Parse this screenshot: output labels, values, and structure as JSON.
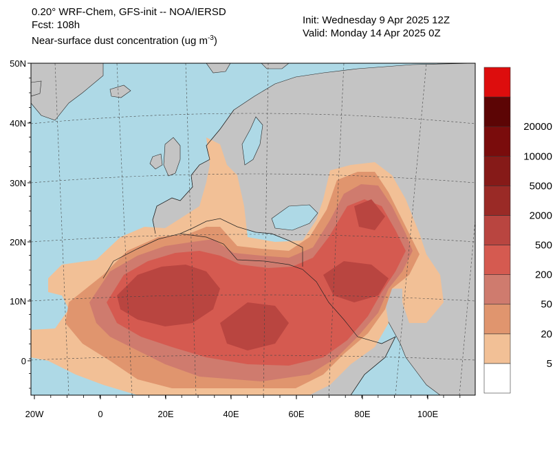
{
  "header": {
    "model_line": "0.20° WRF-Chem, GFS-init -- NOA/IERSD",
    "fcst_line": "Fcst: 108h",
    "field_line": "Near-surface dust concentration (ug m",
    "field_unit_sup": "-3",
    "field_line_end": ")",
    "init_line": "Init: Wednesday 9 Apr 2025  12Z",
    "valid_line": "Valid: Monday 14 Apr 2025  0Z"
  },
  "axes": {
    "lat_labels": [
      "50N",
      "40N",
      "30N",
      "20N",
      "10N",
      "0"
    ],
    "lon_labels": [
      "20W",
      "0",
      "20E",
      "40E",
      "60E",
      "80E",
      "100E"
    ]
  },
  "colorbar": {
    "labels": [
      "20000",
      "10000",
      "5000",
      "2000",
      "500",
      "200",
      "50",
      "20",
      "5"
    ],
    "colors": [
      "#ffffff",
      "#f2c096",
      "#e0956e",
      "#cf7b6e",
      "#d55a50",
      "#b94540",
      "#9a2a26",
      "#861a18",
      "#7a0c0c",
      "#5c0505",
      "#dd0d0d"
    ]
  },
  "colors": {
    "ocean": "#aed9e6",
    "land": "#c4c4c4",
    "dust_5": "#f2c096",
    "dust_20": "#e0956e",
    "dust_50": "#cf7b6e",
    "dust_200": "#d55a50",
    "dust_500": "#b94540"
  }
}
